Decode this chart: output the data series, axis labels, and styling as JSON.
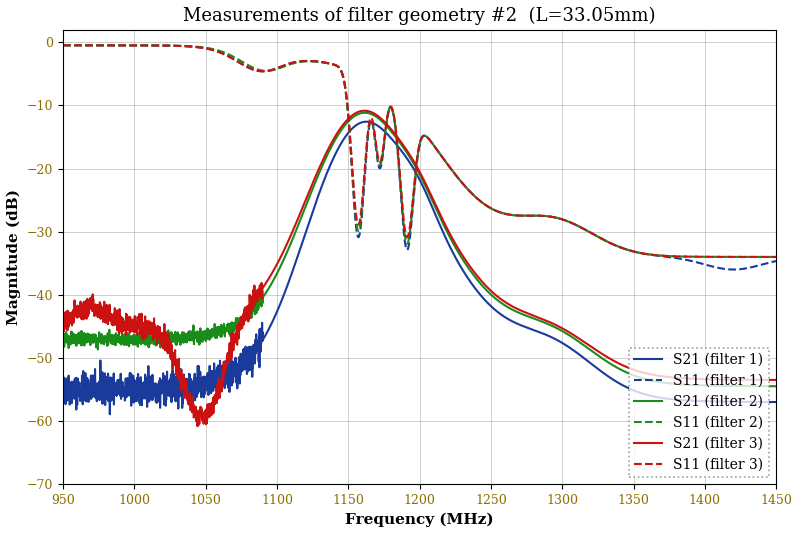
{
  "title": "Measurements of filter geometry #2  (L=33.05mm)",
  "xlabel": "Frequency (MHz)",
  "ylabel": "Magnitude (dB)",
  "xlim": [
    950,
    1450
  ],
  "ylim": [
    -70,
    2
  ],
  "xticks": [
    950,
    1000,
    1050,
    1100,
    1150,
    1200,
    1250,
    1300,
    1350,
    1400,
    1450
  ],
  "yticks": [
    0,
    -10,
    -20,
    -30,
    -40,
    -50,
    -60,
    -70
  ],
  "colors": {
    "filter1": "#1a3a9c",
    "filter2": "#1a8c1a",
    "filter3": "#cc1111"
  },
  "tick_color": "#8b6e00",
  "grid_color": "#aaaaaa",
  "lw": 1.5,
  "title_fontsize": 13,
  "axis_fontsize": 11,
  "tick_fontsize": 9,
  "legend_fontsize": 10
}
